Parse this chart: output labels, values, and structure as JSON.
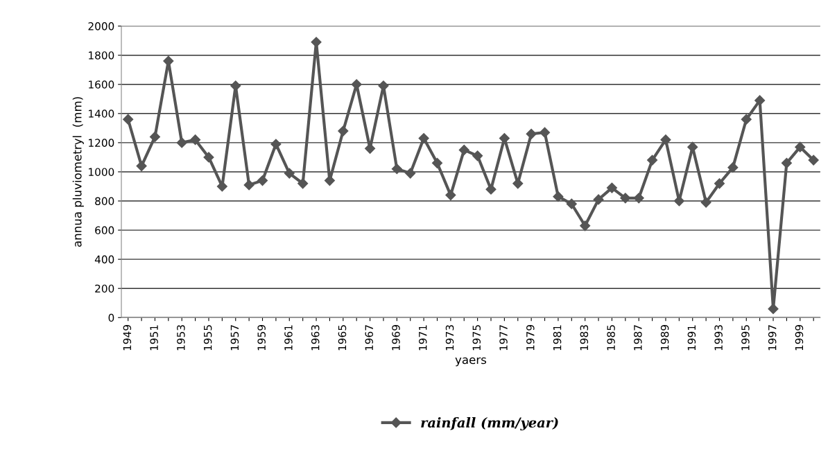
{
  "chart_data": {
    "type": "line",
    "xlabel": "yaers",
    "ylabel": "annua pluviometryl  (mm)",
    "categories": [
      "1949",
      null,
      "1951",
      null,
      "1953",
      null,
      "1955",
      null,
      "1957",
      null,
      "1959",
      null,
      "1961",
      null,
      "1963",
      null,
      "1965",
      null,
      "1967",
      null,
      "1969",
      null,
      "1971",
      null,
      "1973",
      null,
      "1975",
      null,
      "1977",
      null,
      "1979",
      null,
      "1981",
      null,
      "1983",
      null,
      "1985",
      null,
      "1987",
      null,
      "1989",
      null,
      "1991",
      null,
      "1993",
      null,
      "1995",
      null,
      "1997",
      null,
      "1999",
      null
    ],
    "series": [
      {
        "name": "rainfall (mm/year)",
        "color": "#555555",
        "values": [
          1360,
          1040,
          1240,
          1760,
          1200,
          1220,
          1100,
          900,
          1590,
          910,
          940,
          1190,
          990,
          920,
          1890,
          940,
          1280,
          1600,
          1160,
          1590,
          1020,
          990,
          1230,
          1060,
          840,
          1150,
          1110,
          880,
          1230,
          920,
          1260,
          1270,
          830,
          780,
          630,
          810,
          890,
          820,
          820,
          1080,
          1220,
          800,
          1170,
          790,
          920,
          1030,
          1360,
          1490,
          60,
          1060,
          1170,
          1080
        ]
      }
    ],
    "ylim": [
      0,
      2000
    ],
    "yticks": [
      0,
      200,
      400,
      600,
      800,
      1000,
      1200,
      1400,
      1600,
      1800,
      2000
    ],
    "grid": "y",
    "legend": "bottom",
    "marker": "diamond",
    "line_style": "solid"
  }
}
